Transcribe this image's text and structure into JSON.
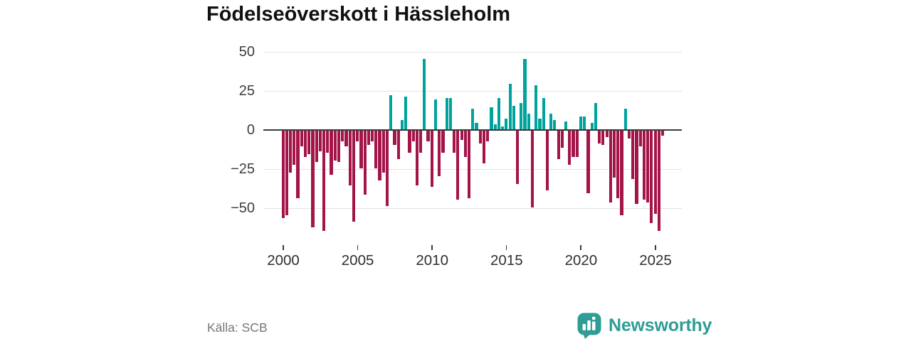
{
  "header": {
    "title": "Födelseöverskott i Hässleholm"
  },
  "footer": {
    "source": "Källa: SCB",
    "brand": "Newsworthy"
  },
  "colors": {
    "positive": "#00a39b",
    "negative": "#a31449",
    "logo_teal": "#2f9c95",
    "axis_text": "#3d3d3d",
    "gridline": "#e3e3e3",
    "zero_line": "#3a3a3a"
  },
  "chart_data": {
    "type": "bar",
    "title": "Födelseöverskott i Hässleholm",
    "source": "Källa: SCB",
    "frequency": "quarterly",
    "grid": "horizontal",
    "legend": "none",
    "xlabel": "",
    "ylabel": "",
    "ylim": [
      -68,
      55
    ],
    "y_ticks": [
      50,
      25,
      0,
      -25,
      -50
    ],
    "y_tick_labels": [
      "50",
      "25",
      "0",
      "−25",
      "−50"
    ],
    "x_tick_years": [
      2000,
      2005,
      2010,
      2015,
      2020,
      2025
    ],
    "x_tick_labels": [
      "2000",
      "2005",
      "2010",
      "2015",
      "2020",
      "2025"
    ],
    "positive_color": "#00a39b",
    "negative_color": "#a31449",
    "x": [
      "2000Q1",
      "2000Q2",
      "2000Q3",
      "2000Q4",
      "2001Q1",
      "2001Q2",
      "2001Q3",
      "2001Q4",
      "2002Q1",
      "2002Q2",
      "2002Q3",
      "2002Q4",
      "2003Q1",
      "2003Q2",
      "2003Q3",
      "2003Q4",
      "2004Q1",
      "2004Q2",
      "2004Q3",
      "2004Q4",
      "2005Q1",
      "2005Q2",
      "2005Q3",
      "2005Q4",
      "2006Q1",
      "2006Q2",
      "2006Q3",
      "2006Q4",
      "2007Q1",
      "2007Q2",
      "2007Q3",
      "2007Q4",
      "2008Q1",
      "2008Q2",
      "2008Q3",
      "2008Q4",
      "2009Q1",
      "2009Q2",
      "2009Q3",
      "2009Q4",
      "2010Q1",
      "2010Q2",
      "2010Q3",
      "2010Q4",
      "2011Q1",
      "2011Q2",
      "2011Q3",
      "2011Q4",
      "2012Q1",
      "2012Q2",
      "2012Q3",
      "2012Q4",
      "2013Q1",
      "2013Q2",
      "2013Q3",
      "2013Q4",
      "2014Q1",
      "2014Q2",
      "2014Q3",
      "2014Q4",
      "2015Q1",
      "2015Q2",
      "2015Q3",
      "2015Q4",
      "2016Q1",
      "2016Q2",
      "2016Q3",
      "2016Q4",
      "2017Q1",
      "2017Q2",
      "2017Q3",
      "2017Q4",
      "2018Q1",
      "2018Q2",
      "2018Q3",
      "2018Q4",
      "2019Q1",
      "2019Q2",
      "2019Q3",
      "2019Q4",
      "2020Q1",
      "2020Q2",
      "2020Q3",
      "2020Q4",
      "2021Q1",
      "2021Q2",
      "2021Q3",
      "2021Q4",
      "2022Q1",
      "2022Q2",
      "2022Q3",
      "2022Q4",
      "2023Q1",
      "2023Q2",
      "2023Q3",
      "2023Q4",
      "2024Q1",
      "2024Q2",
      "2024Q3",
      "2024Q4",
      "2025Q1",
      "2025Q2",
      "2025Q3"
    ],
    "values": [
      -56,
      -54,
      -27,
      -22,
      -43,
      -10,
      -17,
      -15,
      -62,
      -20,
      -13,
      -64,
      -14,
      -28,
      -19,
      -20,
      -7,
      -10,
      -35,
      -58,
      -7,
      -24,
      -41,
      -9,
      -7,
      -24,
      -32,
      -27,
      -48,
      22,
      -9,
      -18,
      6,
      21,
      -14,
      -7,
      -35,
      -14,
      45,
      -7,
      -36,
      19,
      -29,
      -14,
      20,
      20,
      -14,
      -44,
      -6,
      -17,
      -43,
      13,
      4,
      -8,
      -21,
      -7,
      14,
      3,
      20,
      2,
      7,
      29,
      15,
      -34,
      17,
      45,
      10,
      -49,
      28,
      7,
      20,
      -38,
      10,
      6,
      -18,
      -11,
      5,
      -22,
      -17,
      -17,
      8,
      8,
      -40,
      4,
      17,
      -8,
      -9,
      -4,
      -46,
      -30,
      -43,
      -54,
      13,
      -5,
      -31,
      -47,
      -10,
      -44,
      -46,
      -59,
      -53,
      -64,
      -3
    ]
  }
}
